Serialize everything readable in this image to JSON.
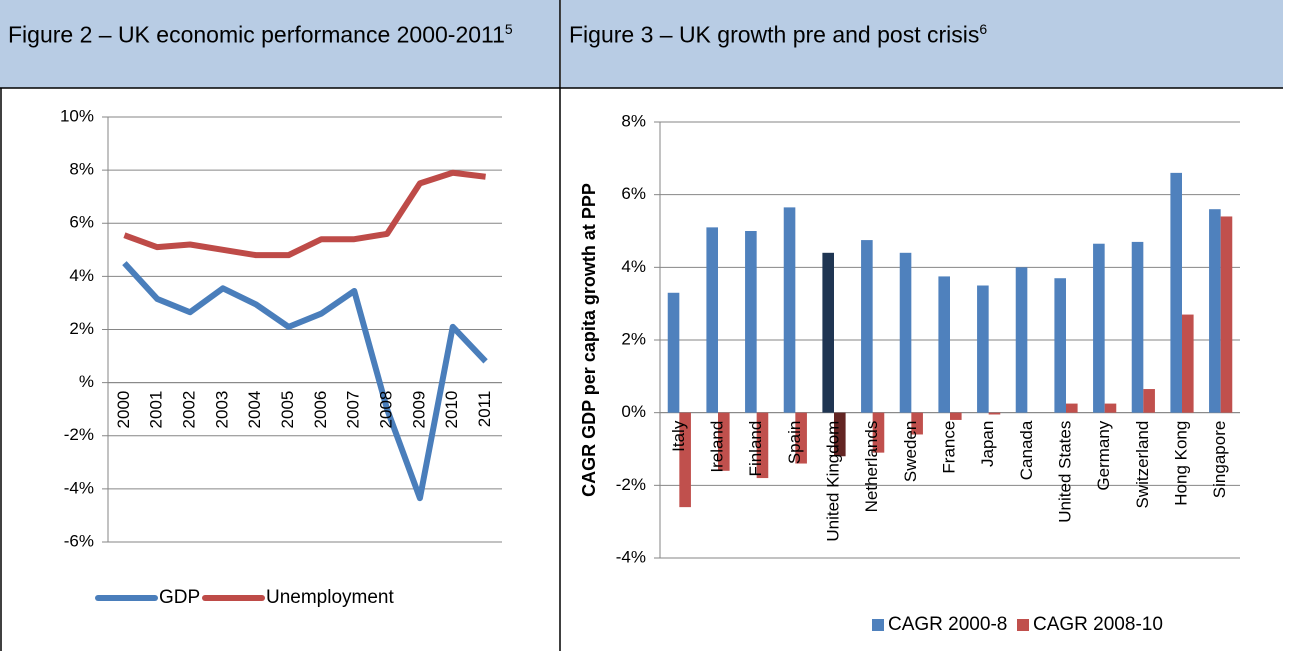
{
  "chart_data": [
    {
      "type": "line",
      "title": "Figure 2 – UK economic performance 2000-2011",
      "footnote": "5",
      "categories": [
        "2000",
        "2001",
        "2002",
        "2003",
        "2004",
        "2005",
        "2006",
        "2007",
        "2008",
        "2009",
        "2010",
        "2011"
      ],
      "series": [
        {
          "name": "GDP",
          "color": "#4a7ebb",
          "values": [
            4.5,
            3.15,
            2.65,
            3.55,
            2.95,
            2.1,
            2.6,
            3.45,
            -1.0,
            -4.35,
            2.1,
            0.8
          ]
        },
        {
          "name": "Unemployment",
          "color": "#be4b48",
          "values": [
            5.55,
            5.1,
            5.2,
            5.0,
            4.8,
            4.8,
            5.4,
            5.4,
            5.6,
            7.5,
            7.9,
            7.75
          ]
        }
      ],
      "ylim": [
        -6,
        10
      ],
      "yticks": [
        {
          "value": -6,
          "label": "-6%"
        },
        {
          "value": -4,
          "label": "-4%"
        },
        {
          "value": -2,
          "label": "-2%"
        },
        {
          "value": 0,
          "label": "%"
        },
        {
          "value": 2,
          "label": "2%"
        },
        {
          "value": 4,
          "label": "4%"
        },
        {
          "value": 6,
          "label": "6%"
        },
        {
          "value": 8,
          "label": "8%"
        },
        {
          "value": 10,
          "label": "10%"
        }
      ],
      "grid": true,
      "legend": "bottom"
    },
    {
      "type": "bar",
      "title": "Figure 3 – UK growth pre and post crisis",
      "footnote": "6",
      "y_label": "CAGR GDP per capita  growth at PPP",
      "categories": [
        "Italy",
        "Ireland",
        "Finland",
        "Spain",
        "United Kingdom",
        "Netherlands",
        "Sweden",
        "France",
        "Japan",
        "Canada",
        "United States",
        "Germany",
        "Switzerland",
        "Hong Kong",
        "Singapore"
      ],
      "series": [
        {
          "name": "CAGR 2000-8",
          "color": "#4f81bd",
          "highlight_color": "#1f3552",
          "values": [
            3.3,
            5.1,
            5.0,
            5.65,
            4.4,
            4.75,
            4.4,
            3.75,
            3.5,
            4.0,
            3.7,
            4.65,
            4.7,
            6.6,
            5.6
          ]
        },
        {
          "name": "CAGR 2008-10",
          "color": "#c0504d",
          "highlight_color": "#632523",
          "values": [
            -2.6,
            -1.6,
            -1.8,
            -1.4,
            -1.2,
            -1.1,
            -0.6,
            -0.2,
            -0.05,
            0,
            0.25,
            0.25,
            0.65,
            2.7,
            5.4
          ]
        }
      ],
      "highlight_index": 4,
      "ylim": [
        -4,
        8
      ],
      "yticks": [
        {
          "value": -4,
          "label": "-4%"
        },
        {
          "value": -2,
          "label": "-2%"
        },
        {
          "value": 0,
          "label": "0%"
        },
        {
          "value": 2,
          "label": "2%"
        },
        {
          "value": 4,
          "label": "4%"
        },
        {
          "value": 6,
          "label": "6%"
        },
        {
          "value": 8,
          "label": "8%"
        }
      ],
      "grid": true,
      "legend": "bottom"
    }
  ]
}
